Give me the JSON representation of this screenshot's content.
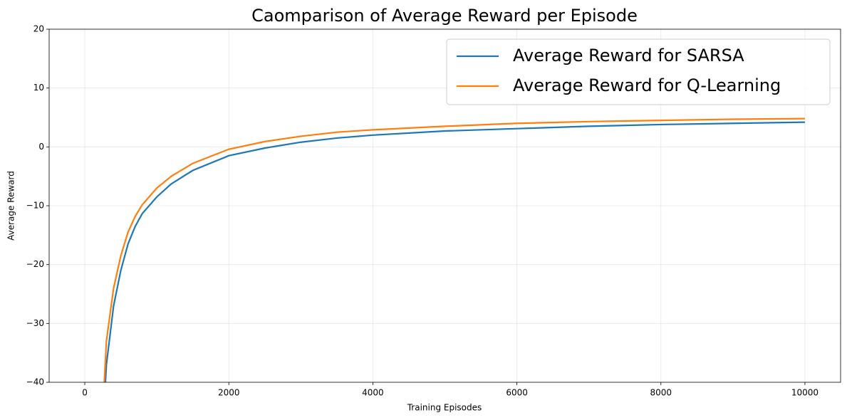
{
  "chart_data": {
    "type": "line",
    "title": "Caomparison of Average Reward per Episode",
    "xlabel": "Training Episodes",
    "ylabel": "Average Reward",
    "x": [
      250,
      300,
      400,
      500,
      600,
      700,
      800,
      1000,
      1200,
      1500,
      2000,
      2500,
      3000,
      3500,
      4000,
      5000,
      6000,
      7000,
      8000,
      9000,
      10000
    ],
    "series": [
      {
        "name": "Average Reward for SARSA",
        "color": "#1f77b4",
        "values": [
          -48,
          -37,
          -27,
          -21,
          -16.5,
          -13.5,
          -11.3,
          -8.5,
          -6.3,
          -4,
          -1.5,
          -0.2,
          0.8,
          1.5,
          2,
          2.7,
          3.1,
          3.5,
          3.8,
          4,
          4.2
        ]
      },
      {
        "name": "Average Reward for Q-Learning",
        "color": "#ff7f0e",
        "values": [
          -45,
          -33,
          -24,
          -18.5,
          -14.5,
          -11.8,
          -9.8,
          -7,
          -5,
          -2.8,
          -0.4,
          0.9,
          1.8,
          2.5,
          2.9,
          3.5,
          4,
          4.3,
          4.5,
          4.7,
          4.8
        ]
      }
    ],
    "xlim": [
      -495,
      10495
    ],
    "ylim": [
      -40,
      20
    ],
    "xticks": [
      0,
      2000,
      4000,
      6000,
      8000,
      10000
    ],
    "yticks": [
      {
        "value": -40,
        "label": "−40"
      },
      {
        "value": -30,
        "label": "−30"
      },
      {
        "value": -20,
        "label": "−20"
      },
      {
        "value": -10,
        "label": "−10"
      },
      0,
      10,
      20
    ],
    "grid": true,
    "legend": "upper right"
  }
}
